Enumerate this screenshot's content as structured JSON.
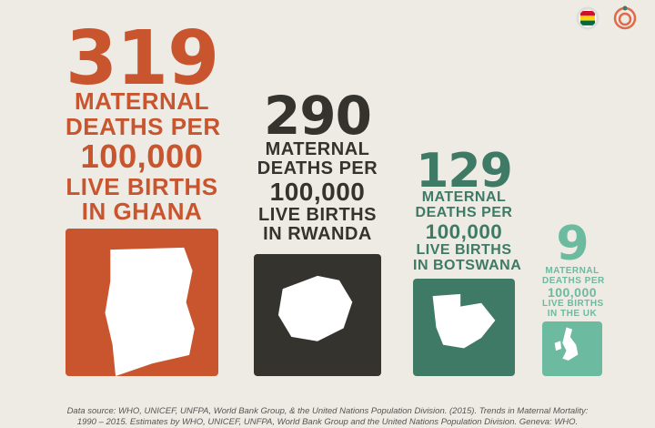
{
  "items": [
    {
      "number": "319",
      "lines": [
        "MATERNAL",
        "DEATHS PER",
        "100,000",
        "LIVE BIRTHS",
        "IN GHANA"
      ],
      "color": "#c9552f"
    },
    {
      "number": "290",
      "lines": [
        "MATERNAL",
        "DEATHS PER",
        "100,000",
        "LIVE BIRTHS",
        "IN RWANDA"
      ],
      "color": "#34332e"
    },
    {
      "number": "129",
      "lines": [
        "MATERNAL",
        "DEATHS PER",
        "100,000",
        "LIVE BIRTHS",
        "IN BOTSWANA"
      ],
      "color": "#3e7a66"
    },
    {
      "number": "9",
      "lines": [
        "MATERNAL",
        "DEATHS PER",
        "100,000",
        "LIVE BIRTHS",
        "IN THE UK"
      ],
      "color": "#6cbaa0"
    }
  ],
  "source": [
    "Data source: WHO, UNICEF, UNFPA, World Bank Group, & the United Nations Population Division. (2015). Trends in Maternal Mortality:",
    "1990 – 2015. Estimates by WHO, UNICEF, UNFPA, World Bank Group and the United Nations Population Division. Geneva: WHO."
  ]
}
